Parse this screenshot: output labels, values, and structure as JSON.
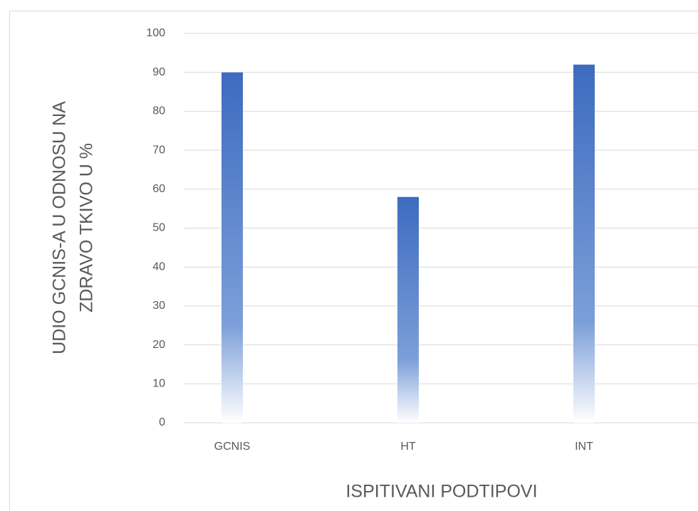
{
  "chart_data": {
    "type": "bar",
    "x_label": "ISPITIVANI PODTIPOVI",
    "y_label": [
      "UDIO GCNIS-A U ODNOSU NA",
      "ZDRAVO TKIVO U %"
    ],
    "categories": [
      "GCNIS",
      "HT",
      "INT"
    ],
    "values": [
      90,
      58,
      92
    ],
    "color": "#4472c4",
    "ylim": [
      0,
      100
    ],
    "yticks": [
      0,
      10,
      20,
      30,
      40,
      50,
      60,
      70,
      80,
      90,
      100
    ],
    "grid": true
  }
}
